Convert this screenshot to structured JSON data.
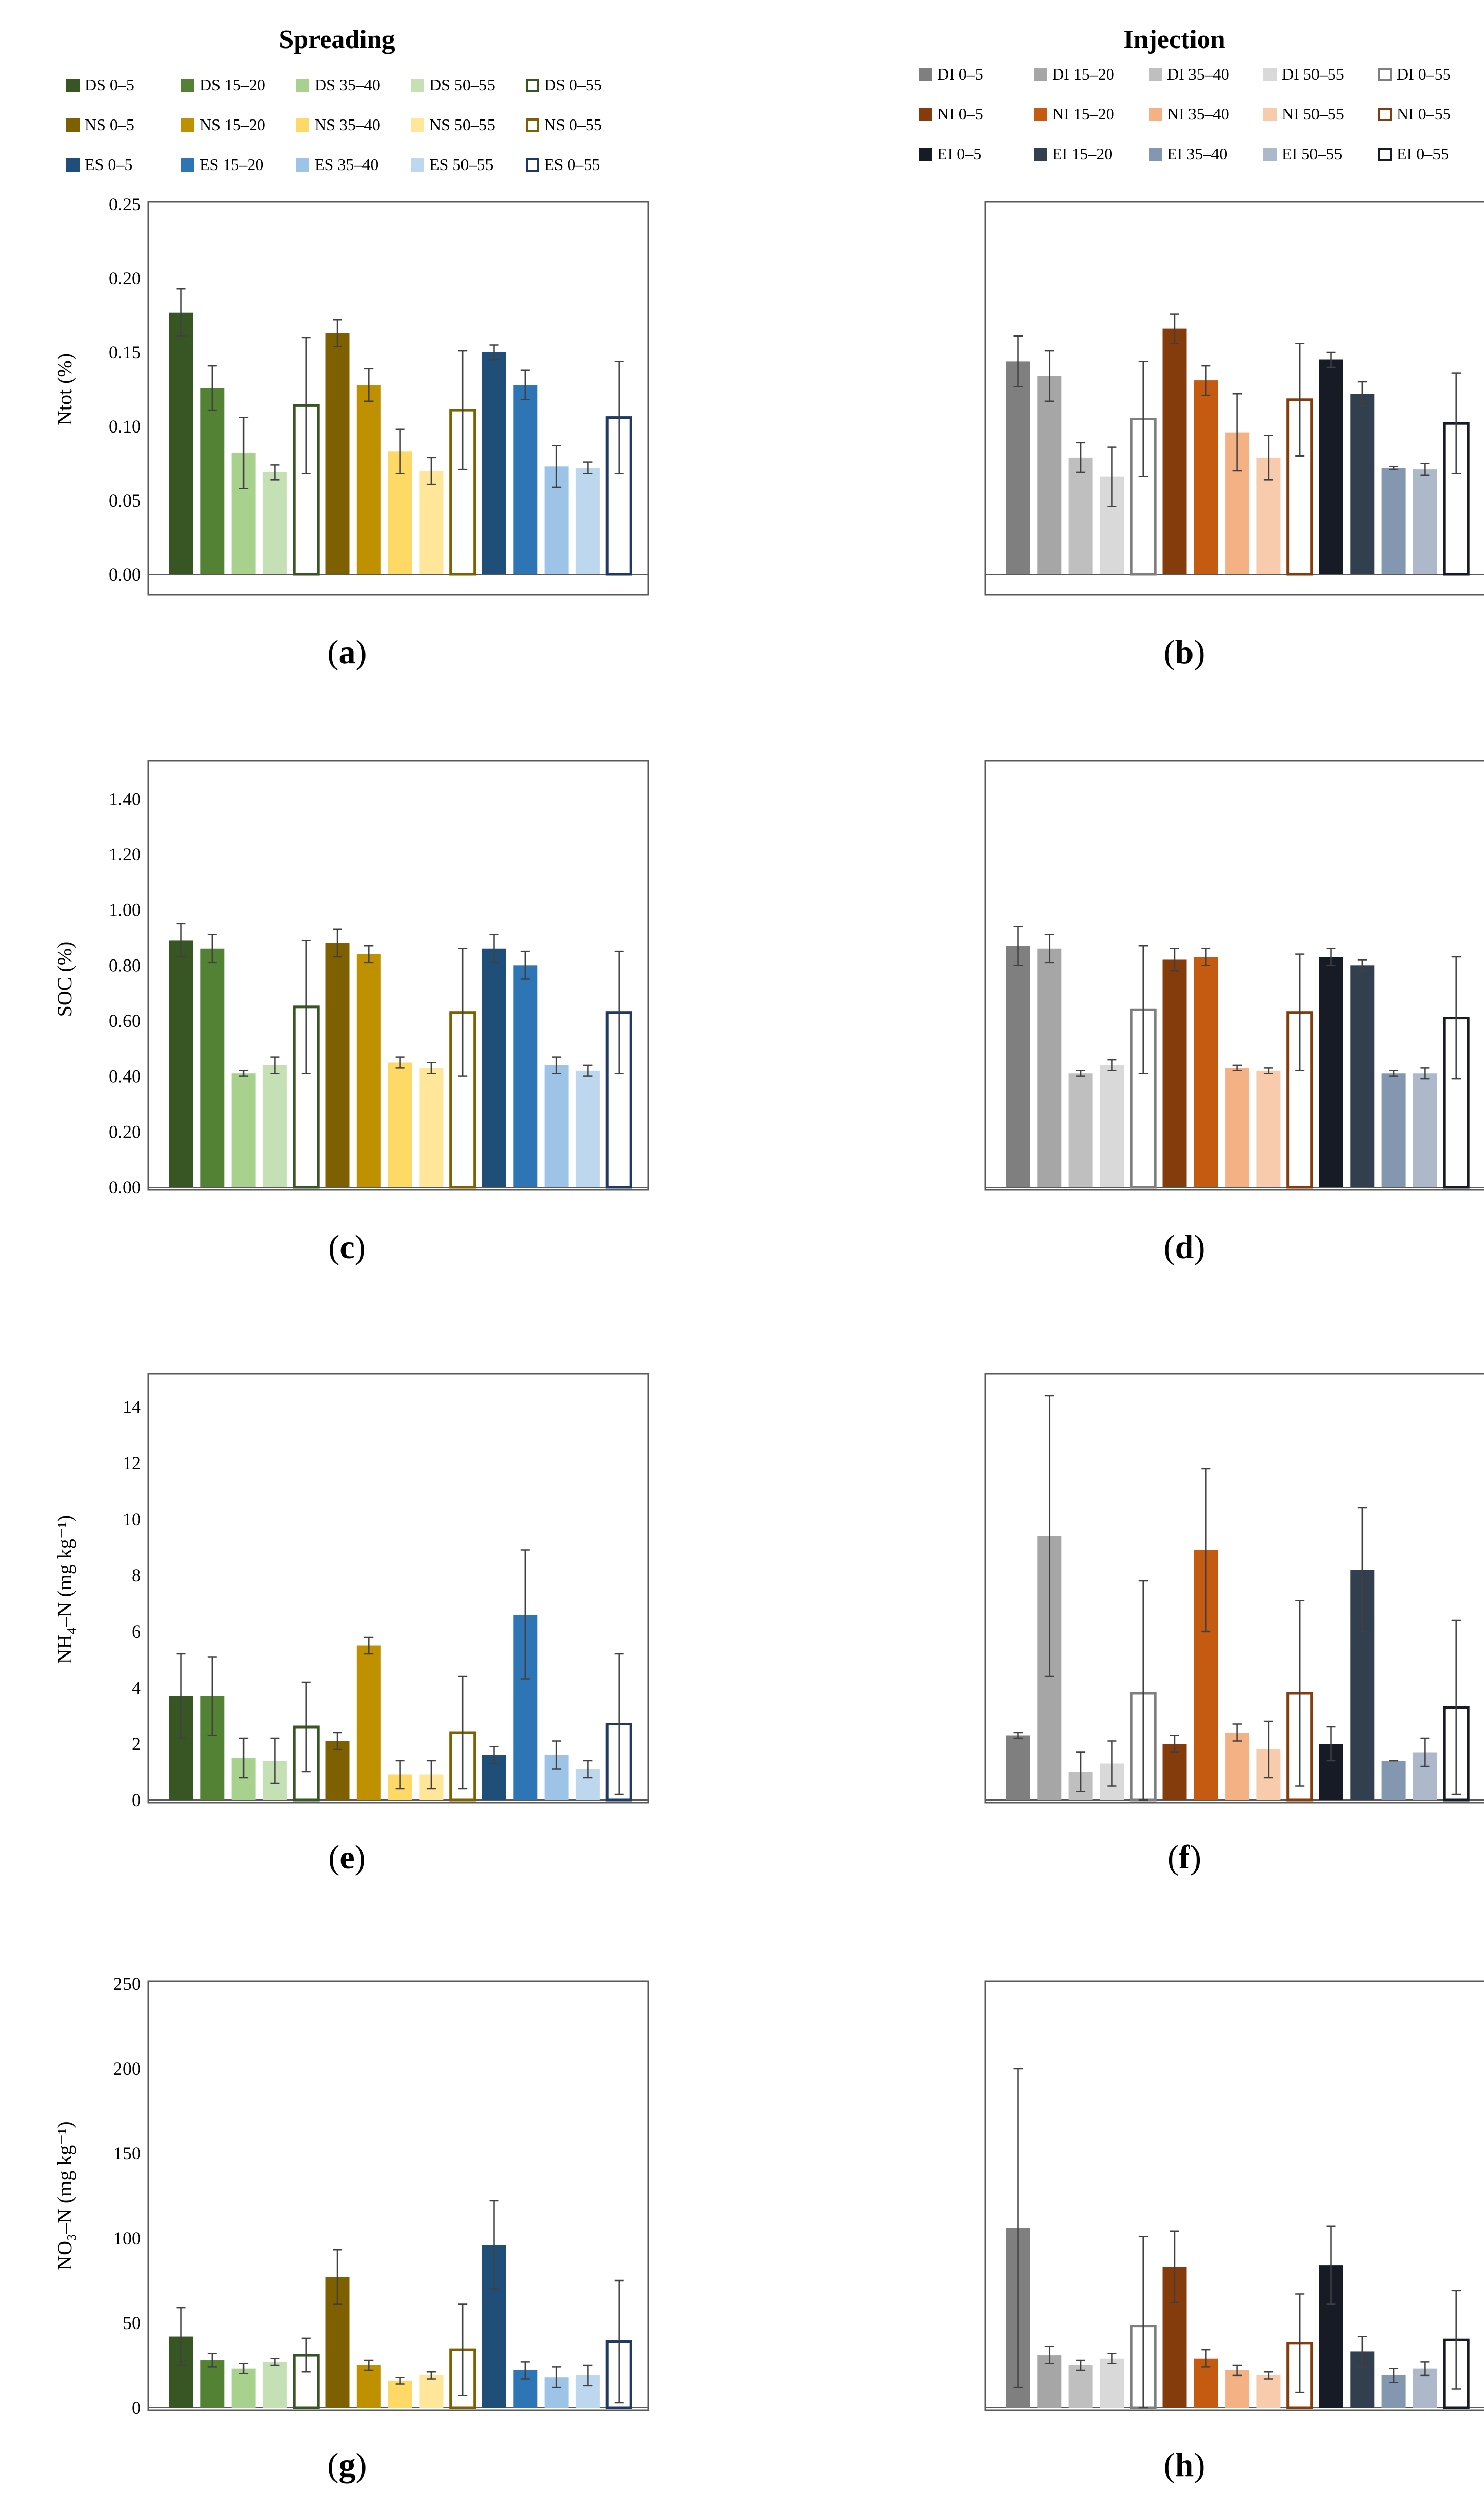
{
  "headers": {
    "spreading": "Spreading",
    "injection": "Injection"
  },
  "legend_spreading": [
    {
      "label": "DS 0–5",
      "color": "#375623",
      "outline": false
    },
    {
      "label": "DS 15–20",
      "color": "#548235",
      "outline": false
    },
    {
      "label": "DS 35–40",
      "color": "#A9D18E",
      "outline": false
    },
    {
      "label": "DS 50–55",
      "color": "#C5E0B4",
      "outline": false
    },
    {
      "label": "DS 0–55",
      "color": "#375623",
      "outline": true
    },
    {
      "label": "NS 0–5",
      "color": "#7F6000",
      "outline": false
    },
    {
      "label": "NS 15–20",
      "color": "#BF9000",
      "outline": false
    },
    {
      "label": "NS 35–40",
      "color": "#FFD966",
      "outline": false
    },
    {
      "label": "NS 50–55",
      "color": "#FFE699",
      "outline": false
    },
    {
      "label": "NS 0–55",
      "color": "#7F6000",
      "outline": true
    },
    {
      "label": "ES 0–5",
      "color": "#1F4E79",
      "outline": false
    },
    {
      "label": "ES 15–20",
      "color": "#2E75B6",
      "outline": false
    },
    {
      "label": "ES 35–40",
      "color": "#9DC3E6",
      "outline": false
    },
    {
      "label": "ES 50–55",
      "color": "#BDD7EE",
      "outline": false
    },
    {
      "label": "ES 0–55",
      "color": "#1F3864",
      "outline": true
    }
  ],
  "legend_injection": [
    {
      "label": "DI 0–5",
      "color": "#7F7F7F",
      "outline": false
    },
    {
      "label": "DI 15–20",
      "color": "#A6A6A6",
      "outline": false
    },
    {
      "label": "DI 35–40",
      "color": "#BFBFBF",
      "outline": false
    },
    {
      "label": "DI 50–55",
      "color": "#D9D9D9",
      "outline": false
    },
    {
      "label": "DI 0–55",
      "color": "#7F7F7F",
      "outline": true
    },
    {
      "label": "NI 0–5",
      "color": "#843C0C",
      "outline": false
    },
    {
      "label": "NI 15–20",
      "color": "#C55A11",
      "outline": false
    },
    {
      "label": "NI 35–40",
      "color": "#F4B183",
      "outline": false
    },
    {
      "label": "NI 50–55",
      "color": "#F8CBAD",
      "outline": false
    },
    {
      "label": "NI 0–55",
      "color": "#843C0C",
      "outline": true
    },
    {
      "label": "EI 0–5",
      "color": "#161B26",
      "outline": false
    },
    {
      "label": "EI 15–20",
      "color": "#323F4F",
      "outline": false
    },
    {
      "label": "EI 35–40",
      "color": "#8497B0",
      "outline": false
    },
    {
      "label": "EI 50–55",
      "color": "#ADB9CA",
      "outline": false
    },
    {
      "label": "EI 0–55",
      "color": "#161B26",
      "outline": true
    }
  ],
  "chart_data": [
    {
      "panel": "a",
      "group": "Spreading",
      "type": "bar",
      "ylabel": "Ntot (%)",
      "ylim": [
        0,
        0.25
      ],
      "yticks": [
        "0.00",
        "0.05",
        "0.10",
        "0.15",
        "0.20",
        "0.25"
      ],
      "show_yaxis": true,
      "values": [
        0.177,
        0.126,
        0.082,
        0.069,
        0.114,
        0.163,
        0.128,
        0.083,
        0.07,
        0.111,
        0.15,
        0.128,
        0.073,
        0.072,
        0.106
      ],
      "errors": [
        0.016,
        0.015,
        0.024,
        0.005,
        0.046,
        0.009,
        0.011,
        0.015,
        0.009,
        0.04,
        0.005,
        0.01,
        0.014,
        0.004,
        0.038
      ]
    },
    {
      "panel": "b",
      "group": "Injection",
      "type": "bar",
      "ylabel": "",
      "ylim": [
        0,
        0.25
      ],
      "yticks": [],
      "show_yaxis": false,
      "values": [
        0.144,
        0.134,
        0.079,
        0.066,
        0.105,
        0.166,
        0.131,
        0.096,
        0.079,
        0.118,
        0.145,
        0.122,
        0.072,
        0.071,
        0.102
      ],
      "errors": [
        0.017,
        0.017,
        0.01,
        0.02,
        0.039,
        0.01,
        0.01,
        0.026,
        0.015,
        0.038,
        0.005,
        0.008,
        0.001,
        0.004,
        0.034
      ]
    },
    {
      "panel": "c",
      "group": "Spreading",
      "type": "bar",
      "ylabel": "SOC (%)",
      "ylim": [
        0,
        1.5
      ],
      "yticks": [
        "0.00",
        "0.20",
        "0.40",
        "0.60",
        "0.80",
        "1.00",
        "1.20",
        "1.40"
      ],
      "show_yaxis": true,
      "values": [
        0.89,
        0.86,
        0.41,
        0.44,
        0.65,
        0.88,
        0.84,
        0.45,
        0.43,
        0.63,
        0.86,
        0.8,
        0.44,
        0.42,
        0.63
      ],
      "errors": [
        0.06,
        0.05,
        0.01,
        0.03,
        0.24,
        0.05,
        0.03,
        0.02,
        0.02,
        0.23,
        0.05,
        0.05,
        0.03,
        0.02,
        0.22
      ]
    },
    {
      "panel": "d",
      "group": "Injection",
      "type": "bar",
      "ylabel": "",
      "ylim": [
        0,
        1.5
      ],
      "yticks": [],
      "show_yaxis": false,
      "values": [
        0.87,
        0.86,
        0.41,
        0.44,
        0.64,
        0.82,
        0.83,
        0.43,
        0.42,
        0.63,
        0.83,
        0.8,
        0.41,
        0.41,
        0.61
      ],
      "errors": [
        0.07,
        0.05,
        0.01,
        0.02,
        0.23,
        0.04,
        0.03,
        0.01,
        0.01,
        0.21,
        0.03,
        0.02,
        0.01,
        0.02,
        0.22
      ]
    },
    {
      "panel": "e",
      "group": "Spreading",
      "type": "bar",
      "ylabel": "NH₄–N (mg kg⁻¹)",
      "ylim": [
        0,
        15
      ],
      "yticks": [
        "0",
        "2",
        "4",
        "6",
        "8",
        "10",
        "12",
        "14"
      ],
      "show_yaxis": true,
      "values": [
        3.7,
        3.7,
        1.5,
        1.4,
        2.6,
        2.1,
        5.5,
        0.9,
        0.9,
        2.4,
        1.6,
        6.6,
        1.6,
        1.1,
        2.7
      ],
      "errors": [
        1.5,
        1.4,
        0.7,
        0.8,
        1.6,
        0.3,
        0.3,
        0.5,
        0.5,
        2.0,
        0.3,
        2.3,
        0.5,
        0.3,
        2.5
      ]
    },
    {
      "panel": "f",
      "group": "Injection",
      "type": "bar",
      "ylabel": "",
      "ylim": [
        0,
        15
      ],
      "yticks": [],
      "show_yaxis": false,
      "values": [
        2.3,
        9.4,
        1.0,
        1.3,
        3.8,
        2.0,
        8.9,
        2.4,
        1.8,
        3.8,
        2.0,
        8.2,
        1.4,
        1.7,
        3.3
      ],
      "errors": [
        0.1,
        5.0,
        0.7,
        0.8,
        4.0,
        0.3,
        2.9,
        0.3,
        1.0,
        3.3,
        0.6,
        2.2,
        0.0,
        0.5,
        3.1
      ]
    },
    {
      "panel": "g",
      "group": "Spreading",
      "type": "bar",
      "ylabel": "NO₃–N (mg kg⁻¹)",
      "ylim": [
        0,
        250
      ],
      "yticks": [
        "0",
        "50",
        "100",
        "150",
        "200",
        "250"
      ],
      "show_yaxis": true,
      "values": [
        42,
        28,
        23,
        27,
        31,
        77,
        25,
        16,
        19,
        34,
        96,
        22,
        18,
        19,
        39
      ],
      "errors": [
        17,
        4,
        3,
        2,
        10,
        16,
        3,
        2,
        2,
        27,
        26,
        5,
        6,
        6,
        36
      ]
    },
    {
      "panel": "h",
      "group": "Injection",
      "type": "bar",
      "ylabel": "",
      "ylim": [
        0,
        250
      ],
      "yticks": [],
      "show_yaxis": false,
      "values": [
        106,
        31,
        25,
        29,
        48,
        83,
        29,
        22,
        19,
        38,
        84,
        33,
        19,
        23,
        40
      ],
      "errors": [
        94,
        5,
        3,
        3,
        53,
        21,
        5,
        3,
        2,
        29,
        23,
        9,
        4,
        4,
        29
      ]
    }
  ],
  "panel_labels": [
    "a",
    "b",
    "c",
    "d",
    "e",
    "f",
    "g",
    "h"
  ]
}
